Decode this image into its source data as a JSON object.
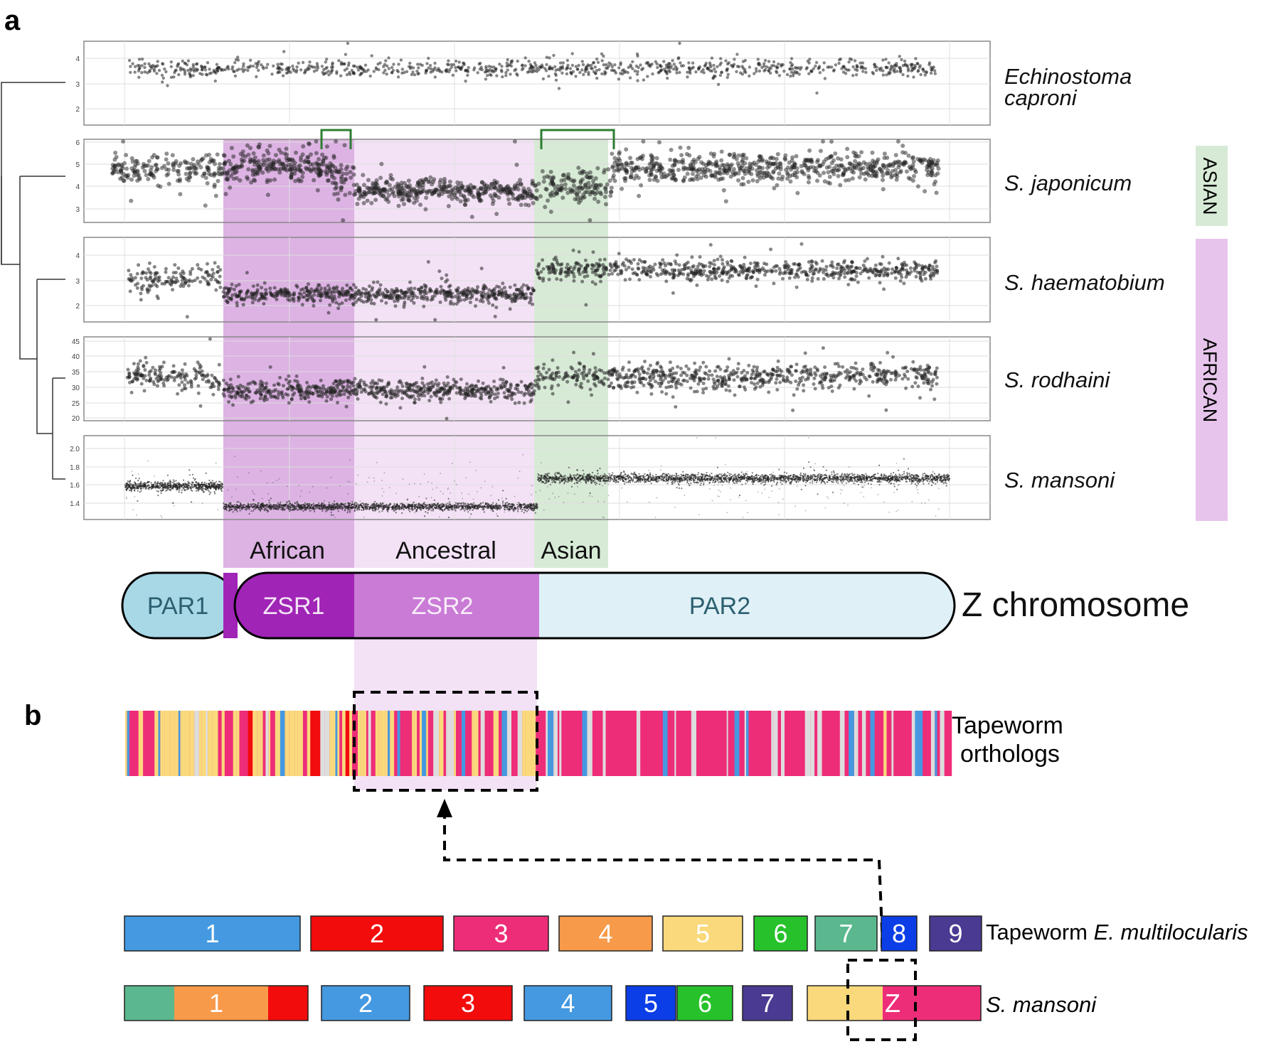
{
  "figure": {
    "panel_a_label": "a",
    "panel_b_label": "b",
    "colors": {
      "african_shade": "#dcb3e3",
      "ancestral_shade": "#f3e1f5",
      "asian_shade": "#d7ead6",
      "par1_fill": "#a8d8e6",
      "zsr1_fill": "#a024b6",
      "zsr2_fill": "#c97bd6",
      "par2_fill": "#dff0f6",
      "bracket_green": "#2e7d32",
      "par_text": "#2b5f70"
    }
  },
  "species": [
    {
      "name": "Echinostoma",
      "name2": "caproni",
      "yticks": [
        "2",
        "3",
        "4"
      ]
    },
    {
      "name": "S. japonicum",
      "yticks": [
        "3",
        "4",
        "5",
        "6"
      ]
    },
    {
      "name": "S. haematobium",
      "yticks": [
        "2",
        "3",
        "4"
      ]
    },
    {
      "name": "S. rodhaini",
      "yticks": [
        "20",
        "25",
        "30",
        "35",
        "40",
        "45"
      ]
    },
    {
      "name": "S. mansoni",
      "yticks": [
        "1.4",
        "1.6",
        "1.8",
        "2.0"
      ]
    }
  ],
  "groups": {
    "asian": "ASIAN",
    "african": "AFRICAN"
  },
  "regions": {
    "african": "African",
    "ancestral": "Ancestral",
    "asian": "Asian"
  },
  "chromosome": {
    "title": "Z chromosome",
    "segments": [
      "PAR1",
      "ZSR1",
      "ZSR2",
      "PAR2"
    ]
  },
  "tapeworm_orthologs": {
    "line1": "Tapeworm",
    "line2": "orthologs"
  },
  "tapeworm_karyotype": {
    "label_prefix": "Tapeworm ",
    "label_species": "E. multilocularis",
    "chromosomes": [
      {
        "label": "1",
        "color": "#4499e1"
      },
      {
        "label": "2",
        "color": "#f20c0c"
      },
      {
        "label": "3",
        "color": "#ee2d78"
      },
      {
        "label": "4",
        "color": "#f79a4a"
      },
      {
        "label": "5",
        "color": "#fad97c"
      },
      {
        "label": "6",
        "color": "#27c22b"
      },
      {
        "label": "7",
        "color": "#5bb88e"
      },
      {
        "label": "8",
        "color": "#0b3ee6"
      },
      {
        "label": "9",
        "color": "#4a3a91"
      }
    ]
  },
  "mansoni_karyotype": {
    "label": "S. mansoni",
    "chromosomes": [
      {
        "label": "1",
        "color": "#f79a4a"
      },
      {
        "label": "2",
        "color": "#4499e1"
      },
      {
        "label": "3",
        "color": "#f20c0c"
      },
      {
        "label": "4",
        "color": "#4499e1"
      },
      {
        "label": "5",
        "color": "#0b3ee6"
      },
      {
        "label": "6",
        "color": "#27c22b"
      },
      {
        "label": "7",
        "color": "#4a3a91"
      },
      {
        "label": "Z",
        "color": "#ee2d78"
      }
    ]
  }
}
